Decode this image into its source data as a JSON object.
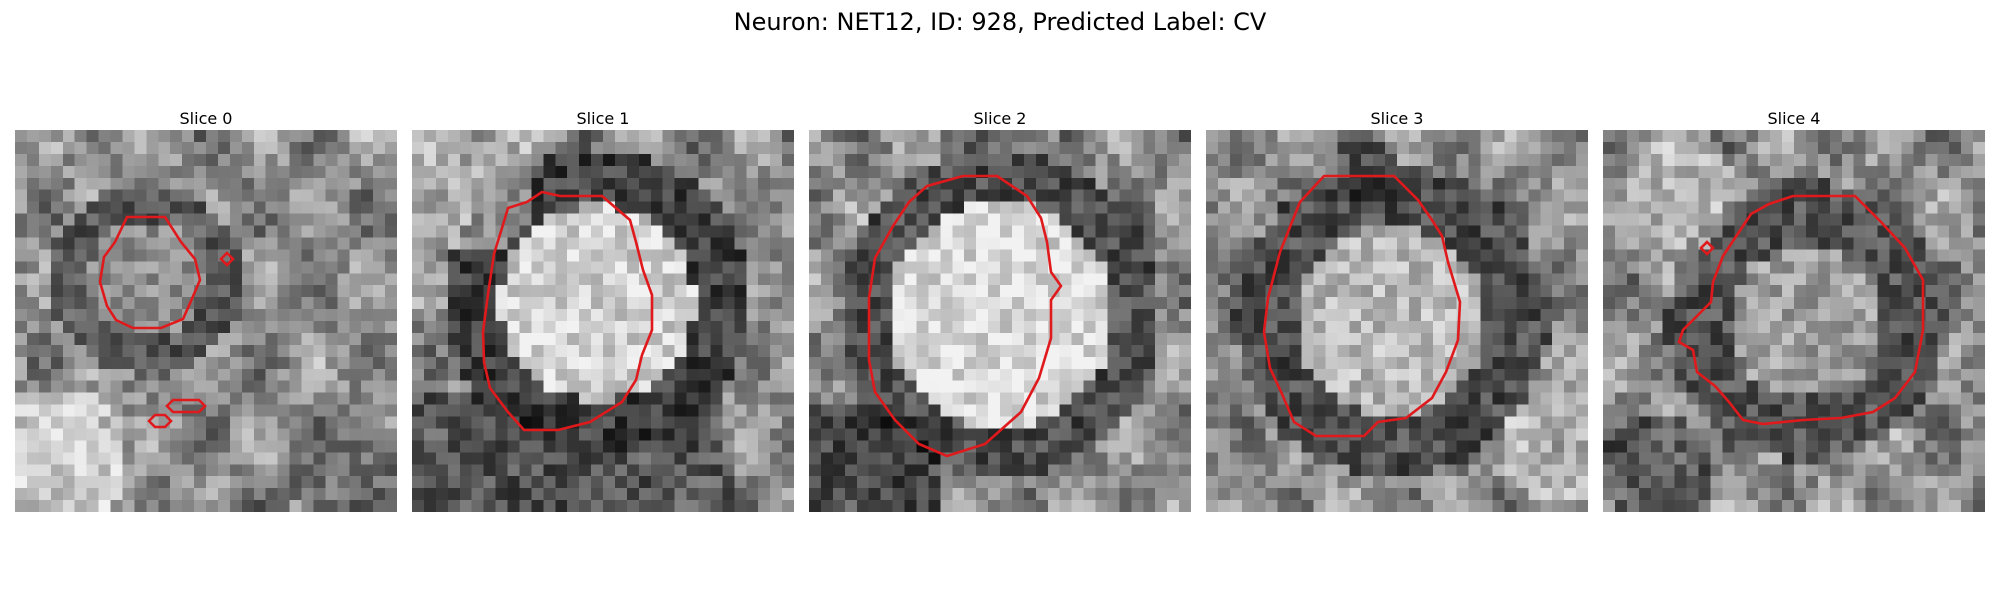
{
  "figure": {
    "title": "Neuron: NET12, ID: 928, Predicted Label: CV",
    "contour_color": "#e0191c"
  },
  "slices": [
    {
      "title": "Slice 0"
    },
    {
      "title": "Slice 1"
    },
    {
      "title": "Slice 2"
    },
    {
      "title": "Slice 3"
    },
    {
      "title": "Slice 4"
    }
  ]
}
